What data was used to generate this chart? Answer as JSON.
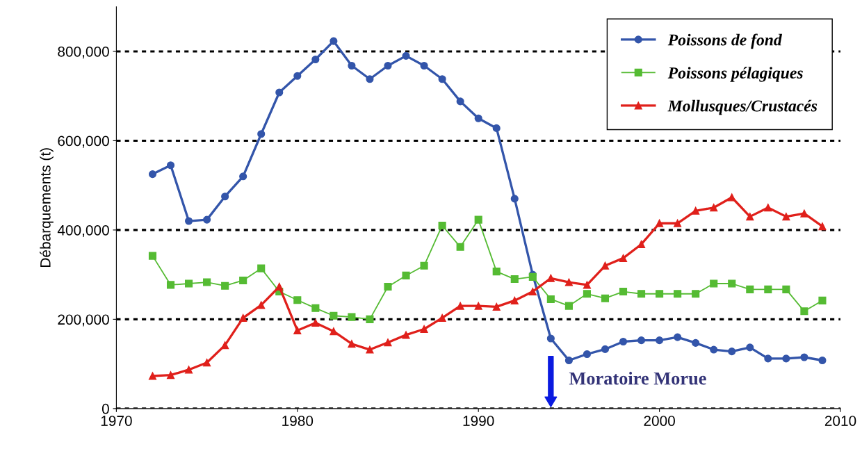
{
  "chart_data": {
    "type": "line",
    "ylabel": "Débarquements (t)",
    "x": [
      1972,
      1973,
      1974,
      1975,
      1976,
      1977,
      1978,
      1979,
      1980,
      1981,
      1982,
      1983,
      1984,
      1985,
      1986,
      1987,
      1988,
      1989,
      1990,
      1991,
      1992,
      1993,
      1994,
      1995,
      1996,
      1997,
      1998,
      1999,
      2000,
      2001,
      2002,
      2003,
      2004,
      2005,
      2006,
      2007,
      2008,
      2009
    ],
    "series": [
      {
        "name": "Poissons de fond",
        "color": "#3355aa",
        "marker": "circle",
        "values": [
          525000,
          545000,
          420000,
          423000,
          475000,
          520000,
          615000,
          708000,
          745000,
          782000,
          823000,
          768000,
          738000,
          768000,
          790000,
          768000,
          738000,
          688000,
          650000,
          628000,
          470000,
          300000,
          157000,
          108000,
          122000,
          133000,
          150000,
          153000,
          153000,
          160000,
          147000,
          132000,
          128000,
          137000,
          112000,
          112000,
          115000,
          108000
        ]
      },
      {
        "name": "Poissons pélagiques",
        "color": "#55bb33",
        "marker": "square",
        "values": [
          342000,
          277000,
          280000,
          283000,
          275000,
          287000,
          314000,
          262000,
          243000,
          225000,
          208000,
          205000,
          200000,
          273000,
          298000,
          320000,
          410000,
          362000,
          423000,
          307000,
          290000,
          295000,
          245000,
          230000,
          257000,
          247000,
          262000,
          257000,
          257000,
          257000,
          257000,
          280000,
          280000,
          267000,
          267000,
          267000,
          218000,
          242000
        ]
      },
      {
        "name": "Mollusques/Crustacés",
        "color": "#e0201b",
        "marker": "triangle",
        "values": [
          73000,
          75000,
          87000,
          103000,
          142000,
          203000,
          232000,
          273000,
          175000,
          192000,
          173000,
          145000,
          132000,
          148000,
          165000,
          178000,
          203000,
          230000,
          230000,
          228000,
          242000,
          262000,
          292000,
          283000,
          277000,
          320000,
          337000,
          368000,
          415000,
          415000,
          443000,
          450000,
          473000,
          430000,
          450000,
          430000,
          437000,
          408000
        ]
      }
    ],
    "xlim": [
      1970,
      2010
    ],
    "xticks": [
      1970,
      1980,
      1990,
      2000,
      2010
    ],
    "ylim": [
      0,
      900000
    ],
    "yticks": [
      {
        "value": 0,
        "label": "0"
      },
      {
        "value": 200000,
        "label": "200,000"
      },
      {
        "value": 400000,
        "label": "400,000"
      },
      {
        "value": 600000,
        "label": "600,000"
      },
      {
        "value": 800000,
        "label": "800,000"
      }
    ],
    "grid": "y",
    "legend": "top right",
    "annotations": [
      "Moratoire Morue"
    ]
  }
}
